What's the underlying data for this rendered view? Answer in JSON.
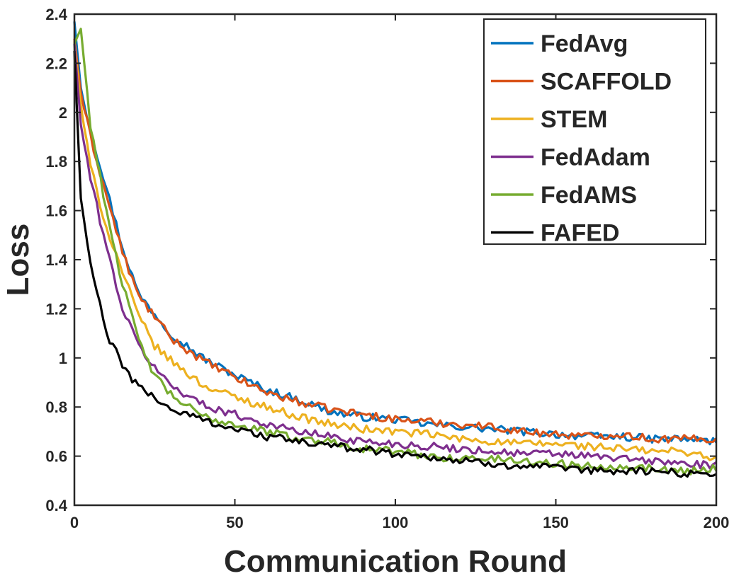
{
  "chart_data": {
    "type": "line",
    "title": "",
    "xlabel": "Communication Round",
    "ylabel": "Loss",
    "xlim": [
      0,
      200
    ],
    "ylim": [
      0.4,
      2.4
    ],
    "xticks": [
      0,
      50,
      100,
      150,
      200
    ],
    "xtick_labels": [
      "0",
      "50",
      "100",
      "150",
      "200"
    ],
    "yticks": [
      0.4,
      0.6,
      0.8,
      1.0,
      1.2,
      1.4,
      1.6,
      1.8,
      2.0,
      2.2,
      2.4
    ],
    "ytick_labels": [
      "0.4",
      "0.6",
      "0.8",
      "1",
      "1.2",
      "1.4",
      "1.6",
      "1.8",
      "2",
      "2.2",
      "2.4"
    ],
    "grid": false,
    "legend_position": "top-right",
    "series": [
      {
        "name": "FedAvg",
        "color": "#0072BD",
        "x": [
          0,
          2,
          5,
          10,
          15,
          20,
          25,
          30,
          40,
          50,
          60,
          70,
          80,
          90,
          100,
          110,
          120,
          130,
          140,
          150,
          160,
          170,
          180,
          190,
          200
        ],
        "values": [
          2.37,
          2.1,
          1.93,
          1.69,
          1.45,
          1.26,
          1.18,
          1.1,
          1.0,
          0.93,
          0.87,
          0.83,
          0.78,
          0.76,
          0.75,
          0.73,
          0.72,
          0.71,
          0.7,
          0.69,
          0.68,
          0.68,
          0.67,
          0.67,
          0.66
        ]
      },
      {
        "name": "SCAFFOLD",
        "color": "#D95319",
        "x": [
          0,
          2,
          5,
          10,
          15,
          20,
          25,
          30,
          40,
          50,
          60,
          70,
          80,
          90,
          100,
          110,
          120,
          130,
          140,
          150,
          160,
          170,
          180,
          190,
          200
        ],
        "values": [
          2.3,
          2.08,
          1.9,
          1.66,
          1.43,
          1.25,
          1.17,
          1.08,
          0.99,
          0.92,
          0.86,
          0.82,
          0.79,
          0.77,
          0.75,
          0.74,
          0.73,
          0.72,
          0.7,
          0.69,
          0.68,
          0.69,
          0.67,
          0.67,
          0.67
        ]
      },
      {
        "name": "STEM",
        "color": "#EDB120",
        "x": [
          0,
          2,
          5,
          10,
          15,
          20,
          25,
          30,
          40,
          50,
          60,
          70,
          80,
          90,
          100,
          110,
          120,
          130,
          140,
          150,
          160,
          170,
          180,
          190,
          200
        ],
        "values": [
          2.29,
          2.03,
          1.78,
          1.53,
          1.35,
          1.17,
          1.05,
          0.99,
          0.89,
          0.84,
          0.8,
          0.76,
          0.73,
          0.71,
          0.7,
          0.69,
          0.67,
          0.66,
          0.65,
          0.65,
          0.64,
          0.63,
          0.62,
          0.62,
          0.59
        ]
      },
      {
        "name": "FedAdam",
        "color": "#7E2F8E",
        "x": [
          0,
          2,
          5,
          10,
          15,
          20,
          25,
          30,
          40,
          50,
          60,
          70,
          80,
          90,
          100,
          110,
          120,
          130,
          140,
          150,
          160,
          170,
          180,
          190,
          200
        ],
        "values": [
          2.28,
          1.95,
          1.73,
          1.45,
          1.2,
          1.05,
          0.96,
          0.89,
          0.81,
          0.77,
          0.73,
          0.7,
          0.68,
          0.66,
          0.65,
          0.64,
          0.63,
          0.62,
          0.61,
          0.61,
          0.6,
          0.59,
          0.58,
          0.57,
          0.56
        ]
      },
      {
        "name": "FedAMS",
        "color": "#77AC30",
        "x": [
          0,
          2,
          5,
          10,
          15,
          20,
          25,
          30,
          40,
          50,
          60,
          70,
          80,
          90,
          100,
          110,
          120,
          130,
          140,
          150,
          160,
          170,
          180,
          190,
          200
        ],
        "values": [
          2.28,
          2.34,
          1.95,
          1.6,
          1.3,
          1.07,
          0.93,
          0.85,
          0.76,
          0.73,
          0.7,
          0.67,
          0.66,
          0.63,
          0.62,
          0.6,
          0.59,
          0.59,
          0.58,
          0.57,
          0.56,
          0.56,
          0.55,
          0.54,
          0.55
        ]
      },
      {
        "name": "FAFED",
        "color": "#000000",
        "x": [
          0,
          2,
          5,
          10,
          15,
          20,
          25,
          30,
          40,
          50,
          60,
          70,
          80,
          90,
          100,
          110,
          120,
          130,
          140,
          150,
          160,
          170,
          180,
          190,
          200
        ],
        "values": [
          2.25,
          1.65,
          1.38,
          1.1,
          0.97,
          0.88,
          0.84,
          0.79,
          0.75,
          0.71,
          0.68,
          0.66,
          0.64,
          0.63,
          0.61,
          0.6,
          0.58,
          0.57,
          0.56,
          0.55,
          0.54,
          0.54,
          0.54,
          0.53,
          0.53
        ]
      }
    ]
  }
}
